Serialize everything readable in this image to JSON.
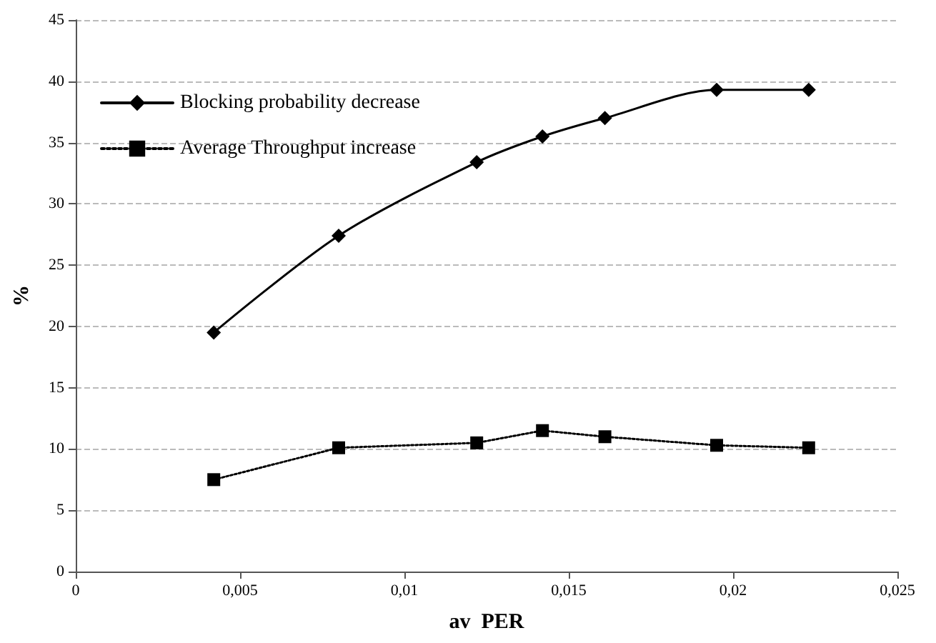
{
  "chart_data": {
    "type": "line",
    "xlabel": "av  PER",
    "ylabel": "%",
    "x": [
      0.0042,
      0.008,
      0.0122,
      0.0142,
      0.0161,
      0.0195,
      0.0223
    ],
    "series": [
      {
        "name": "Blocking probability decrease",
        "color": "#000000",
        "values": [
          19.5,
          27.4,
          33.4,
          35.5,
          37.0,
          39.3,
          39.3
        ],
        "marker": "diamond",
        "line_style": "solid"
      },
      {
        "name": "Average Throughput increase",
        "color": "#000000",
        "values": [
          7.5,
          10.1,
          10.5,
          11.5,
          11.0,
          10.3,
          10.1
        ],
        "marker": "square",
        "line_style": "dotted"
      }
    ],
    "xlim": [
      0,
      0.025
    ],
    "xticks": [
      0,
      {
        "value": 0.005,
        "label": "0,005"
      },
      {
        "value": 0.01,
        "label": "0,01"
      },
      {
        "value": 0.015,
        "label": "0,015"
      },
      {
        "value": 0.02,
        "label": "0,02"
      },
      {
        "value": 0.025,
        "label": "0,025"
      }
    ],
    "ylim": [
      0,
      45
    ],
    "yticks": [
      0,
      5,
      10,
      15,
      20,
      25,
      30,
      35,
      40,
      45
    ],
    "grid": "y",
    "legend": "top left"
  }
}
